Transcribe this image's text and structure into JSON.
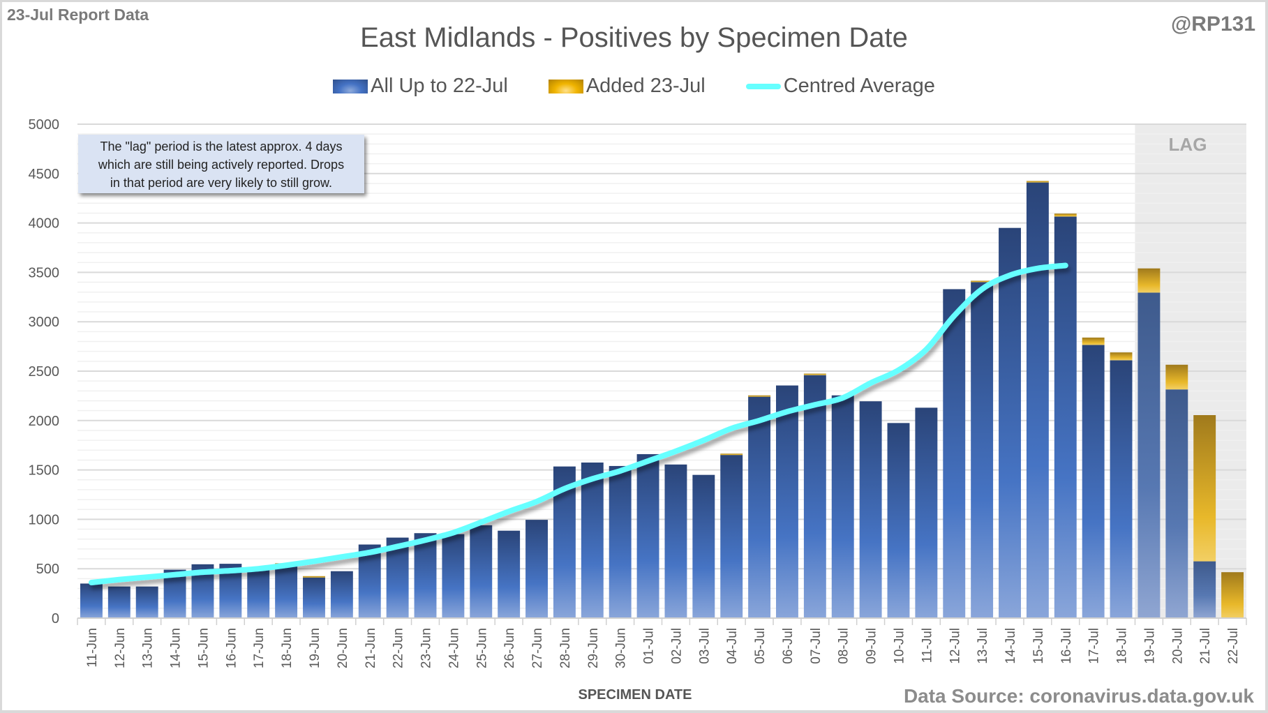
{
  "header": {
    "report_label": "23-Jul Report Data",
    "handle": "@RP131",
    "title": "East Midlands - Positives by Specimen Date"
  },
  "legend": [
    {
      "label": "All Up to 22-Jul",
      "icon": "blue-bar-swatch",
      "color": "#4472c4"
    },
    {
      "label": "Added 23-Jul",
      "icon": "gold-bar-swatch",
      "color": "#f0b400"
    },
    {
      "label": "Centred Average",
      "icon": "cyan-line-swatch",
      "color": "#66ffff"
    }
  ],
  "note": {
    "lines": [
      "The \"lag\" period is the latest approx. 4 days",
      "which are still being actively reported.  Drops",
      "in that period are very likely to still grow."
    ]
  },
  "lag_label": "LAG",
  "footer": {
    "xaxis_title": "SPECIMEN DATE",
    "source": "Data Source: coronavirus.data.gov.uk"
  },
  "chart_data": {
    "type": "bar",
    "stacked": true,
    "title": "East Midlands - Positives by Specimen Date",
    "xlabel": "SPECIMEN DATE",
    "ylabel": "",
    "ylim": [
      0,
      5000
    ],
    "yticks": [
      0,
      500,
      1000,
      1500,
      2000,
      2500,
      3000,
      3500,
      4000,
      4500,
      5000
    ],
    "grid": true,
    "legend_position": "top-center",
    "lag_period": {
      "from": "19-Jul",
      "to": "22-Jul",
      "label": "LAG"
    },
    "categories": [
      "11-Jun",
      "12-Jun",
      "13-Jun",
      "14-Jun",
      "15-Jun",
      "16-Jun",
      "17-Jun",
      "18-Jun",
      "19-Jun",
      "20-Jun",
      "21-Jun",
      "22-Jun",
      "23-Jun",
      "24-Jun",
      "25-Jun",
      "26-Jun",
      "27-Jun",
      "28-Jun",
      "29-Jun",
      "30-Jun",
      "01-Jul",
      "02-Jul",
      "03-Jul",
      "04-Jul",
      "05-Jul",
      "06-Jul",
      "07-Jul",
      "08-Jul",
      "09-Jul",
      "10-Jul",
      "11-Jul",
      "12-Jul",
      "13-Jul",
      "14-Jul",
      "15-Jul",
      "16-Jul",
      "17-Jul",
      "18-Jul",
      "19-Jul",
      "20-Jul",
      "21-Jul",
      "22-Jul"
    ],
    "series": [
      {
        "name": "All Up to 22-Jul",
        "type": "bar",
        "color": "#4472c4",
        "values": [
          350,
          320,
          320,
          490,
          545,
          550,
          510,
          550,
          415,
          475,
          745,
          815,
          860,
          850,
          940,
          885,
          995,
          1535,
          1575,
          1540,
          1660,
          1555,
          1450,
          1655,
          2250,
          2355,
          2460,
          2255,
          2195,
          1975,
          2130,
          3330,
          3410,
          3950,
          4410,
          4065,
          2765,
          2610,
          3295,
          2315,
          575,
          0
        ]
      },
      {
        "name": "Added 23-Jul",
        "type": "bar",
        "color": "#f0b400",
        "values": [
          0,
          0,
          0,
          0,
          0,
          0,
          0,
          5,
          10,
          0,
          0,
          0,
          0,
          0,
          0,
          0,
          0,
          0,
          0,
          0,
          0,
          0,
          0,
          10,
          5,
          0,
          15,
          0,
          0,
          0,
          0,
          0,
          5,
          0,
          15,
          30,
          75,
          80,
          245,
          250,
          1480,
          465
        ]
      },
      {
        "name": "Centred Average",
        "type": "line",
        "color": "#66ffff",
        "values": [
          360,
          390,
          415,
          440,
          465,
          480,
          500,
          535,
          575,
          620,
          665,
          725,
          790,
          865,
          970,
          1080,
          1180,
          1310,
          1410,
          1490,
          1590,
          1690,
          1800,
          1920,
          2000,
          2090,
          2160,
          2230,
          2380,
          2510,
          2720,
          3060,
          3330,
          3470,
          3540,
          3570,
          null,
          null,
          null,
          null,
          null,
          null
        ]
      }
    ]
  }
}
